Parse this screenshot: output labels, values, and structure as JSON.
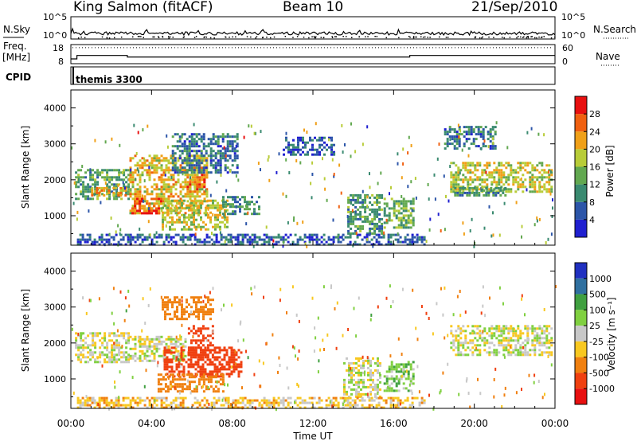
{
  "header": {
    "station": "King Salmon (fitACF)",
    "beam": "Beam 10",
    "date": "21/Sep/2010"
  },
  "nsky_panel": {
    "left_label": "N.Sky",
    "right_label": "N.Search",
    "ticks": [
      "10^5",
      "10^0"
    ]
  },
  "freq_panel": {
    "left_label_1": "Freq.",
    "left_label_2": "[MHz]",
    "left_ticks": [
      "18",
      "8"
    ],
    "right_label": "Nave",
    "right_ticks": [
      "60",
      "0"
    ]
  },
  "cpid": {
    "label": "CPID",
    "mode": "themis 3300"
  },
  "power_panel": {
    "ylabel": "Slant Range [km]",
    "colorbar_label": "Power [dB]",
    "colorbar_ticks": [
      "28",
      "24",
      "20",
      "16",
      "12",
      "8",
      "4"
    ],
    "colors": [
      "#2020d0",
      "#2c55a8",
      "#3a8a70",
      "#62a850",
      "#b8cc38",
      "#f0a018",
      "#f06010",
      "#e81010"
    ]
  },
  "velocity_panel": {
    "ylabel": "Slant Range [km]",
    "colorbar_label": "Velocity [m s⁻¹]",
    "colorbar_ticks": [
      "1000",
      "500",
      "100",
      "25",
      "-25",
      "-100",
      "-500",
      "-1000"
    ],
    "colors": [
      "#2030c0",
      "#3070a0",
      "#40a040",
      "#80d040",
      "#c8c8c8",
      "#f8c820",
      "#f08010",
      "#f04010",
      "#e81010"
    ]
  },
  "xaxis": {
    "label": "Time UT",
    "ticks": [
      "00:00",
      "04:00",
      "08:00",
      "12:00",
      "16:00",
      "20:00",
      "00:00"
    ]
  },
  "chart_data": {
    "type": "heatmap",
    "xlabel": "Time UT",
    "ylabel": "Slant Range [km]",
    "xlim": [
      0,
      24
    ],
    "ylim": [
      180,
      4500
    ],
    "y_ticks": [
      1000,
      2000,
      3000,
      4000
    ],
    "x_tick_hours": [
      0,
      4,
      8,
      12,
      16,
      20,
      24
    ],
    "freq_mhz_steps": [
      [
        0,
        0.3,
        10.5
      ],
      [
        0.3,
        2.8,
        13.2
      ],
      [
        2.8,
        16.8,
        12.0
      ],
      [
        16.8,
        24,
        13.2
      ]
    ],
    "nave_level": 55,
    "power_regions": [
      {
        "t0": 0.2,
        "t1": 2.9,
        "r0": 1500,
        "r1": 2300,
        "db": 12
      },
      {
        "t0": 1.0,
        "t1": 2.7,
        "r0": 1550,
        "r1": 1800,
        "db": 22
      },
      {
        "t0": 2.9,
        "t1": 6.8,
        "r0": 1100,
        "r1": 2700,
        "db": 20
      },
      {
        "t0": 3.0,
        "t1": 4.5,
        "r0": 1100,
        "r1": 1500,
        "db": 26
      },
      {
        "t0": 5.5,
        "t1": 6.8,
        "r0": 1700,
        "r1": 2300,
        "db": 24
      },
      {
        "t0": 5.0,
        "t1": 8.2,
        "r0": 2200,
        "r1": 3300,
        "db": 8
      },
      {
        "t0": 4.5,
        "t1": 7.8,
        "r0": 650,
        "r1": 1450,
        "db": 18
      },
      {
        "t0": 7.5,
        "t1": 9.3,
        "r0": 1050,
        "r1": 1550,
        "db": 10
      },
      {
        "t0": 13.7,
        "t1": 15.4,
        "r0": 500,
        "r1": 1600,
        "db": 12
      },
      {
        "t0": 15.5,
        "t1": 17.0,
        "r0": 700,
        "r1": 1500,
        "db": 14
      },
      {
        "t0": 18.8,
        "t1": 23.8,
        "r0": 1700,
        "r1": 2500,
        "db": 18
      },
      {
        "t0": 19.0,
        "t1": 21.5,
        "r0": 1550,
        "r1": 1800,
        "db": 10
      },
      {
        "t0": 18.5,
        "t1": 21.0,
        "r0": 2900,
        "r1": 3500,
        "db": 8
      },
      {
        "t0": 10.5,
        "t1": 13.0,
        "r0": 2700,
        "r1": 3200,
        "db": 6
      },
      {
        "t0": 0.3,
        "t1": 17.5,
        "r0": 200,
        "r1": 500,
        "db": 6
      }
    ],
    "velocity_regions": [
      {
        "t0": 0.2,
        "t1": 2.9,
        "r0": 1500,
        "r1": 2300,
        "v": 0
      },
      {
        "t0": 2.9,
        "t1": 5.7,
        "r0": 1500,
        "r1": 2200,
        "v": 0
      },
      {
        "t0": 5.8,
        "t1": 7.0,
        "r0": 1600,
        "r1": 2500,
        "v": -800
      },
      {
        "t0": 4.6,
        "t1": 8.5,
        "r0": 1100,
        "r1": 1900,
        "v": -600
      },
      {
        "t0": 4.3,
        "t1": 7.5,
        "r0": 650,
        "r1": 1150,
        "v": -300
      },
      {
        "t0": 4.5,
        "t1": 7.0,
        "r0": 2700,
        "r1": 3300,
        "v": -300
      },
      {
        "t0": 13.5,
        "t1": 15.3,
        "r0": 500,
        "r1": 1600,
        "v": 0
      },
      {
        "t0": 15.5,
        "t1": 17.0,
        "r0": 700,
        "r1": 1500,
        "v": 80
      },
      {
        "t0": 18.8,
        "t1": 23.8,
        "r0": 1700,
        "r1": 2500,
        "v": 0
      },
      {
        "t0": 0.3,
        "t1": 17.5,
        "r0": 200,
        "r1": 500,
        "v": -60
      }
    ]
  }
}
